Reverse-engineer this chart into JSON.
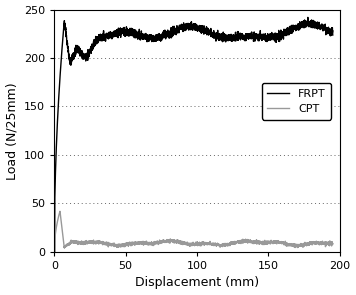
{
  "title": "",
  "xlabel": "Displacement (mm)",
  "ylabel": "Load (N/25mm)",
  "xlim": [
    0,
    200
  ],
  "ylim": [
    0,
    250
  ],
  "xticks": [
    0,
    50,
    100,
    150,
    200
  ],
  "yticks": [
    0,
    50,
    100,
    150,
    200,
    250
  ],
  "frpt_color": "#000000",
  "cpt_color": "#999999",
  "frpt_label": "FRPT",
  "cpt_label": "CPT",
  "frpt_linewidth": 1.0,
  "cpt_linewidth": 1.0,
  "grid_color": "#666666",
  "background_color": "#ffffff"
}
